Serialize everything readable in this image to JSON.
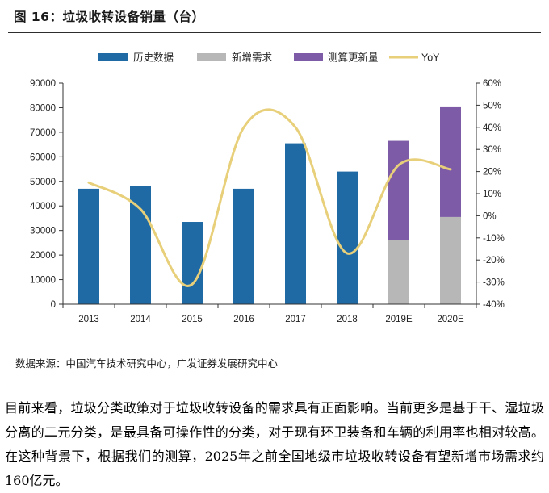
{
  "figure": {
    "title": "图 16：垃圾收转设备销量（台）",
    "source": "数据来源：中国汽车技术研究中心，广发证券发展研究中心"
  },
  "paragraph": {
    "before_year": "目前来看，垃圾分类政策对于垃圾收转设备的需求具有正面影响。当前更多是基于干、湿垃圾分离的二元分类，是最具备可操作性的分类，对于现有环卫装备和车辆的利用率也相对较高。在这种背景下，根据我们的测算，",
    "year": "2025",
    "middle": "年之前全国地级市垃圾收转设备有望新增市场需求约",
    "amount": "160",
    "after_amount": "亿元。"
  },
  "chart_data": {
    "type": "bar",
    "stacked": true,
    "categories": [
      "2013",
      "2014",
      "2015",
      "2016",
      "2017",
      "2018",
      "2019E",
      "2020E"
    ],
    "series": [
      {
        "name": "历史数据",
        "type": "bar",
        "color": "#1f6aa5",
        "values": [
          47000,
          48000,
          33500,
          47000,
          65500,
          54000,
          null,
          null
        ]
      },
      {
        "name": "新增需求",
        "type": "bar",
        "color": "#b7b7b7",
        "values": [
          null,
          null,
          null,
          null,
          null,
          null,
          26000,
          35500
        ]
      },
      {
        "name": "测算更新量",
        "type": "bar",
        "color": "#7d5ba6",
        "values": [
          null,
          null,
          null,
          null,
          null,
          null,
          40500,
          45000
        ]
      },
      {
        "name": "YoY",
        "type": "line",
        "axis": "right",
        "color": "#e8cf7a",
        "values": [
          0.15,
          0.03,
          -0.31,
          0.4,
          0.4,
          -0.17,
          0.23,
          0.21
        ]
      }
    ],
    "ylim": [
      0,
      90000
    ],
    "yticks": [
      "0",
      "10000",
      "20000",
      "30000",
      "40000",
      "50000",
      "60000",
      "70000",
      "80000",
      "90000"
    ],
    "y2lim": [
      -0.4,
      0.6
    ],
    "y2ticks": [
      "-40%",
      "-30%",
      "-20%",
      "-10%",
      "0%",
      "10%",
      "20%",
      "30%",
      "40%",
      "50%",
      "60%"
    ],
    "legend_position": "top-center",
    "grid": false
  }
}
